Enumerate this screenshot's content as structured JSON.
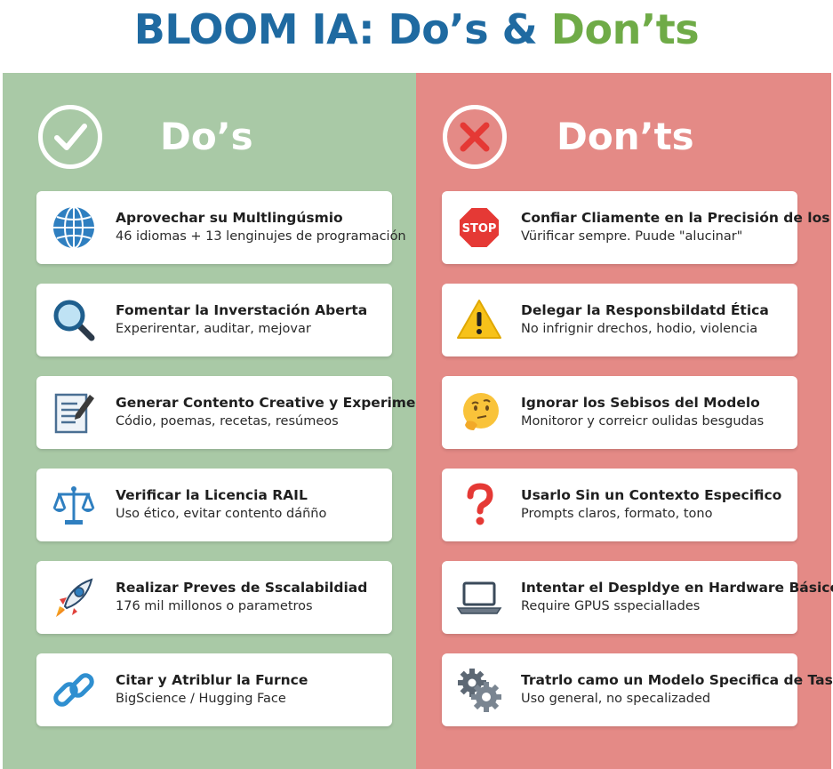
{
  "title": {
    "part1": "BLOOM IA: Do’s & ",
    "part2": "Don’ts"
  },
  "colors": {
    "title_blue": "#1f6aa1",
    "title_green": "#6fab47",
    "left_bg": "#a9c9a6",
    "right_bg": "#e48a86"
  },
  "dos": {
    "heading": "Do’s",
    "icon": "check-circle-icon",
    "items": [
      {
        "icon": "globe-icon",
        "title": "Aprovechar su Multlingúsmio",
        "subtitle": "46 idiomas + 13 lenginujes de programación"
      },
      {
        "icon": "magnifier-icon",
        "title": "Fomentar la Inverstación Aberta",
        "subtitle": "Experirentar, auditar, mejovar"
      },
      {
        "icon": "document-pencil-icon",
        "title": "Generar Contento Creative y Experimentala",
        "subtitle": "Códio, poemas, recetas, resúmeos"
      },
      {
        "icon": "scales-icon",
        "title": "Verificar la Licencia RAIL",
        "subtitle": "Uso ético, evitar contento dáñño"
      },
      {
        "icon": "rocket-icon",
        "title": "Realizar Preves de Sscalabildiad",
        "subtitle": "176 mil millonos o parametros"
      },
      {
        "icon": "chain-link-icon",
        "title": "Citar y Atriblur la Furnce",
        "subtitle": "BigScience / Hugging Face"
      }
    ]
  },
  "donts": {
    "heading": "Don’ts",
    "icon": "x-circle-icon",
    "items": [
      {
        "icon": "stop-sign-icon",
        "icon_text": "STOP",
        "title": "Confiar Cliamente en la Precisión de los",
        "subtitle": "Vürificar sempre. Puude \"alucinar\""
      },
      {
        "icon": "warning-icon",
        "title": "Delegar la Responsbildatd Ética",
        "subtitle": "No infrignir drechos, hodio, violencia"
      },
      {
        "icon": "thinking-face-icon",
        "title": "Ignorar los Sebisos del Modelo",
        "subtitle": "Monitoror y correicr oulidas besgudas"
      },
      {
        "icon": "question-mark-icon",
        "title": "Usarlo Sin un Contexto Especifico",
        "subtitle": "Prompts claros, formato, tono"
      },
      {
        "icon": "laptop-icon",
        "title": "Intentar el Despldye en Hardware Básico",
        "subtitle": "Require GPUS sspecialIades"
      },
      {
        "icon": "gears-icon",
        "title": "Tratrlo camo un Modelo Specifica de Tasa",
        "subtitle": "Uso general, no specalizaded"
      }
    ]
  }
}
